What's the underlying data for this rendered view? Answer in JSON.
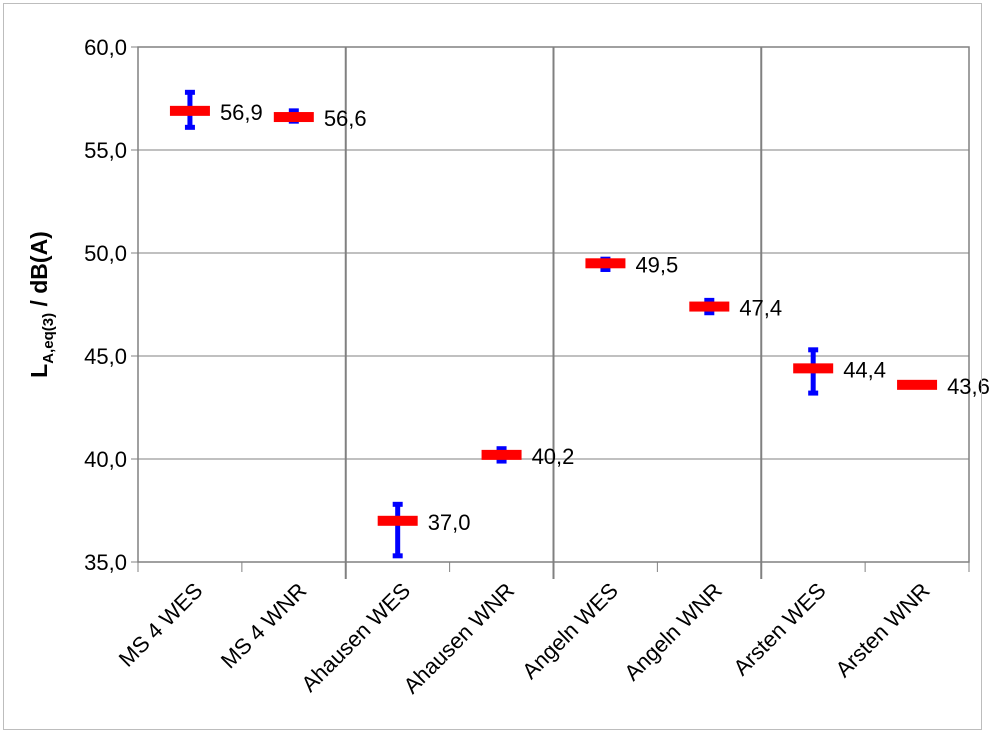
{
  "chart_data": {
    "type": "scatter",
    "ylabel": "L",
    "ylabel_sub": "A,eq(3)",
    "ylabel_rest": " / dB(A)",
    "ylim": [
      35.0,
      60.0
    ],
    "yticks": [
      "35,0",
      "40,0",
      "45,0",
      "50,0",
      "55,0",
      "60,0"
    ],
    "ytick_values": [
      35,
      40,
      45,
      50,
      55,
      60
    ],
    "grid": true,
    "categories": [
      "MS 4 WES",
      "MS 4 WNR",
      "Ahausen WES",
      "Ahausen WNR",
      "Angeln WES",
      "Angeln WNR",
      "Arsten WES",
      "Arsten WNR"
    ],
    "values": [
      56.9,
      56.6,
      37.0,
      40.2,
      49.5,
      47.4,
      44.4,
      43.6
    ],
    "value_labels": [
      "56,9",
      "56,6",
      "37,0",
      "40,2",
      "49,5",
      "47,4",
      "44,4",
      "43,6"
    ],
    "error_low": [
      56.1,
      56.4,
      35.3,
      39.9,
      49.2,
      47.1,
      43.2,
      43.55
    ],
    "error_high": [
      57.8,
      56.9,
      37.8,
      40.5,
      49.7,
      47.7,
      45.3,
      43.65
    ],
    "colors": {
      "marker": "#ff0000",
      "error": "#0000ff",
      "grid": "#808080",
      "axis": "#808080"
    }
  }
}
